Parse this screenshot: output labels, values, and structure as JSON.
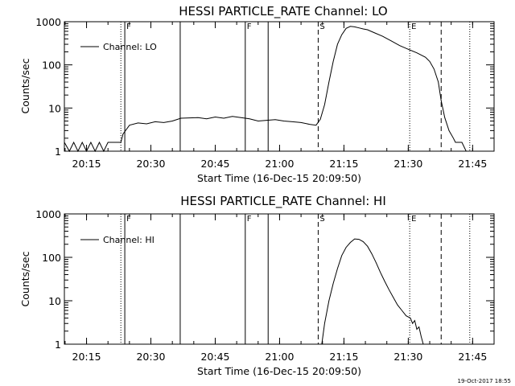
{
  "footer": {
    "timestamp": "19-Oct-2017 18:55"
  },
  "chart_data": [
    {
      "type": "line",
      "title": "HESSI PARTICLE_RATE Channel: LO",
      "xlabel": "Start Time (16-Dec-15 20:09:50)",
      "ylabel": "Counts/sec",
      "yscale": "log",
      "ylim": [
        1,
        1000
      ],
      "xlim": [
        "20:09:50",
        "21:50:00"
      ],
      "xticks": [
        "20:15",
        "20:30",
        "20:45",
        "21:00",
        "21:15",
        "21:30",
        "21:45"
      ],
      "yticks": [
        "1",
        "10",
        "100",
        "1000"
      ],
      "legend": {
        "label": "Channel: LO",
        "position": "top-left"
      },
      "events": [
        {
          "time": "20:23:00",
          "style": "dotted",
          "label": ""
        },
        {
          "time": "20:23:55",
          "style": "solid",
          "label": "F"
        },
        {
          "time": "20:36:50",
          "style": "solid",
          "label": ""
        },
        {
          "time": "20:52:00",
          "style": "solid",
          "label": "F"
        },
        {
          "time": "20:57:20",
          "style": "solid",
          "label": ""
        },
        {
          "time": "21:09:00",
          "style": "dashed",
          "label": "S"
        },
        {
          "time": "21:30:20",
          "style": "dotted",
          "label": "E"
        },
        {
          "time": "21:37:40",
          "style": "dashed",
          "label": ""
        },
        {
          "time": "21:44:20",
          "style": "dotted",
          "label": ""
        }
      ],
      "series": [
        {
          "x": [
            "20:09:50",
            "20:11:00",
            "20:12:00",
            "20:13:00",
            "20:14:00",
            "20:15:00",
            "20:16:00",
            "20:17:00",
            "20:18:00",
            "20:19:00",
            "20:20:00",
            "20:21:00",
            "20:22:00",
            "20:23:00",
            "20:23:30",
            "20:25:00",
            "20:27:00",
            "20:29:00",
            "20:31:00",
            "20:33:00",
            "20:35:00",
            "20:37:00",
            "20:39:00",
            "20:41:00",
            "20:43:00",
            "20:45:00",
            "20:47:00",
            "20:49:00",
            "20:51:00",
            "20:53:00",
            "20:55:00",
            "20:57:00",
            "20:59:00",
            "21:01:00",
            "21:03:00",
            "21:05:00",
            "21:07:00",
            "21:08:30",
            "21:09:30",
            "21:10:30",
            "21:11:30",
            "21:12:30",
            "21:13:30",
            "21:14:30",
            "21:15:30",
            "21:16:30",
            "21:17:30",
            "21:18:30",
            "21:19:30",
            "21:20:30",
            "21:22:00",
            "21:24:00",
            "21:26:00",
            "21:28:00",
            "21:30:00",
            "21:32:00",
            "21:34:00",
            "21:35:00",
            "21:36:00",
            "21:37:00",
            "21:37:40",
            "21:38:30",
            "21:39:30",
            "21:40:30",
            "21:41:00",
            "21:42:30",
            "21:43:30"
          ],
          "values": [
            1.6,
            1.0,
            1.6,
            1.0,
            1.6,
            1.0,
            1.6,
            1.0,
            1.6,
            1.0,
            1.6,
            1.6,
            1.6,
            1.6,
            2.5,
            4.0,
            4.5,
            4.3,
            4.8,
            4.6,
            5.0,
            5.8,
            5.9,
            6.0,
            5.6,
            6.2,
            5.8,
            6.4,
            6.0,
            5.6,
            5.0,
            5.2,
            5.4,
            5.0,
            4.8,
            4.6,
            4.2,
            4.0,
            5.5,
            12,
            40,
            120,
            300,
            500,
            700,
            780,
            760,
            720,
            680,
            650,
            560,
            460,
            360,
            280,
            230,
            190,
            150,
            120,
            80,
            40,
            15,
            6,
            3,
            2,
            1.6,
            1.6,
            1.0
          ]
        }
      ]
    },
    {
      "type": "line",
      "title": "HESSI PARTICLE_RATE Channel: HI",
      "xlabel": "Start Time (16-Dec-15 20:09:50)",
      "ylabel": "Counts/sec",
      "yscale": "log",
      "ylim": [
        1,
        1000
      ],
      "xlim": [
        "20:09:50",
        "21:50:00"
      ],
      "xticks": [
        "20:15",
        "20:30",
        "20:45",
        "21:00",
        "21:15",
        "21:30",
        "21:45"
      ],
      "yticks": [
        "1",
        "10",
        "100",
        "1000"
      ],
      "legend": {
        "label": "Channel: HI",
        "position": "top-left"
      },
      "events": [
        {
          "time": "20:23:00",
          "style": "dotted",
          "label": ""
        },
        {
          "time": "20:23:55",
          "style": "solid",
          "label": "F"
        },
        {
          "time": "20:36:50",
          "style": "solid",
          "label": ""
        },
        {
          "time": "20:52:00",
          "style": "solid",
          "label": "F"
        },
        {
          "time": "20:57:20",
          "style": "solid",
          "label": ""
        },
        {
          "time": "21:09:00",
          "style": "dashed",
          "label": "S"
        },
        {
          "time": "21:30:20",
          "style": "dotted",
          "label": "E"
        },
        {
          "time": "21:37:40",
          "style": "dashed",
          "label": ""
        },
        {
          "time": "21:44:20",
          "style": "dotted",
          "label": ""
        }
      ],
      "series": [
        {
          "x": [
            "21:09:50",
            "21:10:30",
            "21:11:30",
            "21:12:30",
            "21:13:30",
            "21:14:30",
            "21:15:30",
            "21:16:30",
            "21:17:30",
            "21:18:30",
            "21:19:30",
            "21:20:30",
            "21:21:30",
            "21:22:30",
            "21:23:30",
            "21:24:30",
            "21:25:30",
            "21:26:30",
            "21:27:30",
            "21:28:30",
            "21:29:30",
            "21:30:30",
            "21:31:00",
            "21:31:30",
            "21:32:00",
            "21:32:30",
            "21:33:00",
            "21:33:30"
          ],
          "values": [
            1.0,
            3,
            10,
            25,
            55,
            110,
            170,
            220,
            265,
            260,
            230,
            180,
            120,
            75,
            45,
            28,
            18,
            12,
            8,
            6,
            4.5,
            4,
            3,
            3.5,
            2.2,
            2.5,
            1.5,
            1.0
          ]
        }
      ]
    }
  ]
}
